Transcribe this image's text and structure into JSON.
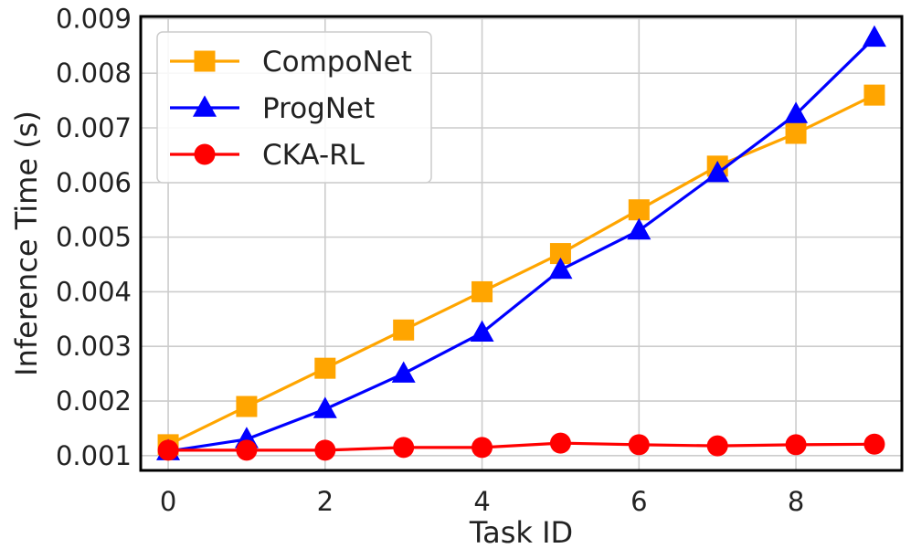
{
  "chart_data": {
    "type": "line",
    "xlabel": "Task ID",
    "ylabel": "Inference Time (s)",
    "xlim": [
      -0.35,
      9.35
    ],
    "ylim": [
      0.00073,
      0.00904
    ],
    "x": [
      0,
      1,
      2,
      3,
      4,
      5,
      6,
      7,
      8,
      9
    ],
    "x_ticks": [
      0,
      2,
      4,
      6,
      8
    ],
    "x_tick_labels": [
      "0",
      "2",
      "4",
      "6",
      "8"
    ],
    "y_ticks": [
      0.001,
      0.002,
      0.003,
      0.004,
      0.005,
      0.006,
      0.007,
      0.008,
      0.009
    ],
    "y_tick_labels": [
      "0.001",
      "0.002",
      "0.003",
      "0.004",
      "0.005",
      "0.006",
      "0.007",
      "0.008",
      "0.009"
    ],
    "grid": true,
    "legend_position": "upper-left",
    "series": [
      {
        "name": "CompoNet",
        "color": "#FFA500",
        "marker": "square",
        "values": [
          0.0012,
          0.0019,
          0.0026,
          0.0033,
          0.004,
          0.0047,
          0.0055,
          0.0063,
          0.0069,
          0.0076
        ]
      },
      {
        "name": "ProgNet",
        "color": "#0000FF",
        "marker": "triangle",
        "values": [
          0.00108,
          0.0013,
          0.00185,
          0.0025,
          0.00325,
          0.0044,
          0.00512,
          0.00617,
          0.00725,
          0.00865
        ]
      },
      {
        "name": "CKA-RL",
        "color": "#FF0000",
        "marker": "circle",
        "values": [
          0.0011,
          0.0011,
          0.0011,
          0.00115,
          0.00115,
          0.00123,
          0.0012,
          0.00118,
          0.0012,
          0.00121
        ]
      }
    ]
  }
}
